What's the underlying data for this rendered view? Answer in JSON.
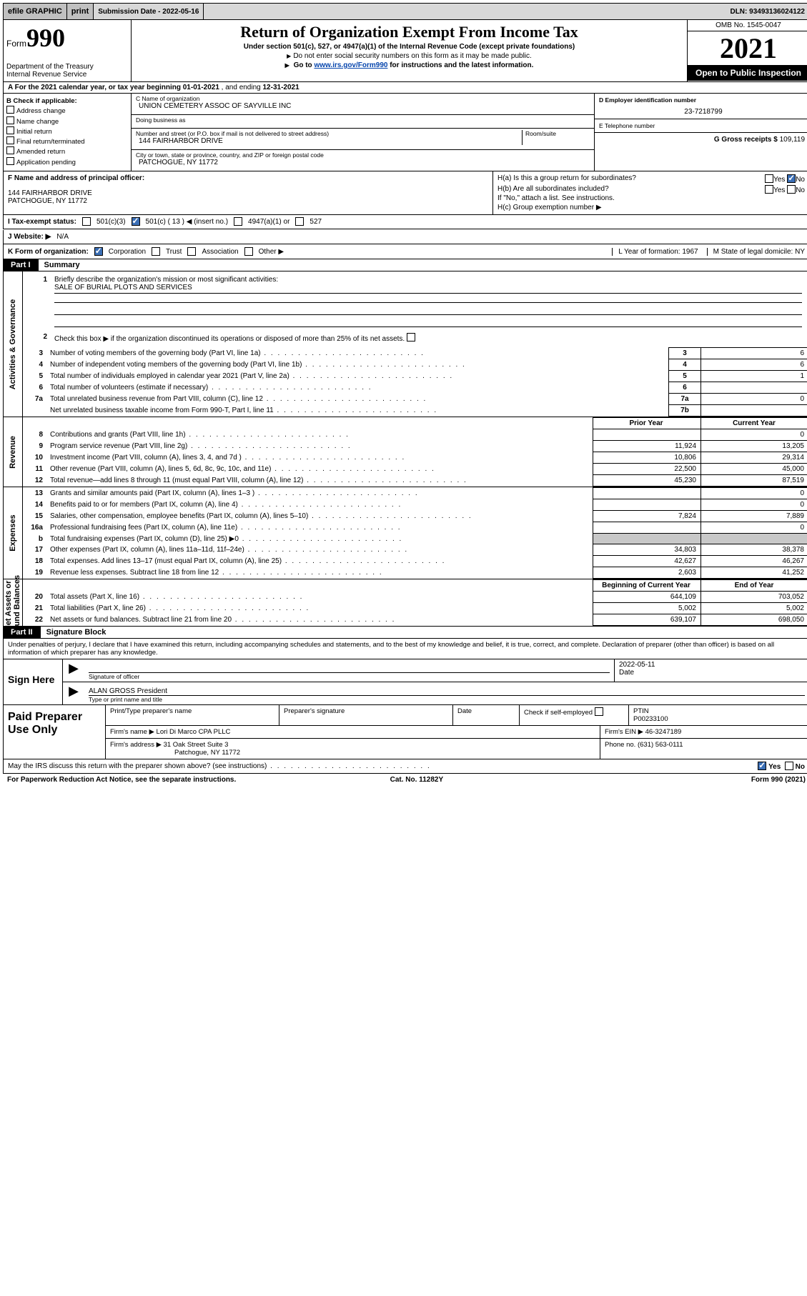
{
  "topbar": {
    "efile": "efile GRAPHIC",
    "print": "print",
    "submission": "Submission Date - 2022-05-16",
    "dln": "DLN: 93493136024122"
  },
  "header": {
    "form_label": "Form",
    "form_number": "990",
    "dept1": "'������",
    "dept_full": "Department of the Treasury",
    "dept2": "Internal Revenue Service",
    "title": "Return of Organization Exempt From Income Tax",
    "sub1": "Under section 501(c), 527, or 4947(a)(1) of the Internal Revenue Code (except private foundations)",
    "sub2": "Do not enter social security numbers on this form as it may be made public.",
    "sub3_pre": "Go to ",
    "sub3_link": "www.irs.gov/Form990",
    "sub3_post": " for instructions and the latest information.",
    "omb": "OMB No. 1545-0047",
    "year": "2021",
    "open": "Open to Public Inspection",
    "colors": {
      "header_bg": "#d8d8d8",
      "link": "#0645ad",
      "open_bg": "#000000",
      "open_fg": "#ffffff",
      "checked_bg": "#3b6fb6"
    }
  },
  "rowA": {
    "text_pre": "A For the 2021 calendar year, or tax year beginning ",
    "begin": "01-01-2021",
    "mid": " , and ending ",
    "end": "12-31-2021"
  },
  "colB": {
    "hdr": "B Check if applicable:",
    "items": [
      "Address change",
      "Name change",
      "Initial return",
      "Final return/terminated",
      "Amended return",
      "Application pending"
    ]
  },
  "colC": {
    "name_lbl": "C Name of organization",
    "name": "UNION CEMETERY ASSOC OF SAYVILLE INC",
    "dba_lbl": "Doing business as",
    "dba": "",
    "addr_lbl": "Number and street (or P.O. box if mail is not delivered to street address)",
    "room_lbl": "Room/suite",
    "addr": "144 FAIRHARBOR DRIVE",
    "city_lbl": "City or town, state or province, country, and ZIP or foreign postal code",
    "city": "PATCHOGUE, NY  11772"
  },
  "colDE": {
    "d_lbl": "D Employer identification number",
    "d_val": "23-7218799",
    "e_lbl": "E Telephone number",
    "e_val": "",
    "g_lbl": "G Gross receipts $",
    "g_val": "109,119"
  },
  "rowF": {
    "f_lbl": "F Name and address of principal officer:",
    "f_addr1": "144 FAIRHARBOR DRIVE",
    "f_addr2": "PATCHOGUE, NY  11772",
    "ha": "H(a)  Is this a group return for subordinates?",
    "ha_yes": "Yes",
    "ha_no": "No",
    "hb": "H(b)  Are all subordinates included?",
    "hb_note": "If \"No,\" attach a list. See instructions.",
    "hc": "H(c)  Group exemption number ▶"
  },
  "rowI": {
    "lbl": "I   Tax-exempt status:",
    "o1": "501(c)(3)",
    "o2": "501(c) ( 13 ) ◀ (insert no.)",
    "o3": "4947(a)(1) or",
    "o4": "527"
  },
  "rowJ": {
    "lbl": "J   Website: ▶",
    "val": "N/A"
  },
  "rowK": {
    "lbl": "K Form of organization:",
    "o1": "Corporation",
    "o2": "Trust",
    "o3": "Association",
    "o4": "Other ▶",
    "l": "L Year of formation: 1967",
    "m": "M State of legal domicile: NY"
  },
  "partI": {
    "tab": "Part I",
    "title": "Summary",
    "q1": "Briefly describe the organization's mission or most significant activities:",
    "q1v": "SALE OF BURIAL PLOTS AND SERVICES",
    "q2": "Check this box ▶        if the organization discontinued its operations or disposed of more than 25% of its net assets.",
    "rows": [
      {
        "n": "3",
        "t": "Number of voting members of the governing body (Part VI, line 1a)",
        "b": "3",
        "v": "6"
      },
      {
        "n": "4",
        "t": "Number of independent voting members of the governing body (Part VI, line 1b)",
        "b": "4",
        "v": "6"
      },
      {
        "n": "5",
        "t": "Total number of individuals employed in calendar year 2021 (Part V, line 2a)",
        "b": "5",
        "v": "1"
      },
      {
        "n": "6",
        "t": "Total number of volunteers (estimate if necessary)",
        "b": "6",
        "v": ""
      },
      {
        "n": "7a",
        "t": "Total unrelated business revenue from Part VIII, column (C), line 12",
        "b": "7a",
        "v": "0"
      },
      {
        "n": "",
        "t": "Net unrelated business taxable income from Form 990-T, Part I, line 11",
        "b": "7b",
        "v": ""
      }
    ],
    "col_prior": "Prior Year",
    "col_curr": "Current Year"
  },
  "revenue": [
    {
      "n": "8",
      "t": "Contributions and grants (Part VIII, line 1h)",
      "p": "",
      "c": "0"
    },
    {
      "n": "9",
      "t": "Program service revenue (Part VIII, line 2g)",
      "p": "11,924",
      "c": "13,205"
    },
    {
      "n": "10",
      "t": "Investment income (Part VIII, column (A), lines 3, 4, and 7d )",
      "p": "10,806",
      "c": "29,314"
    },
    {
      "n": "11",
      "t": "Other revenue (Part VIII, column (A), lines 5, 6d, 8c, 9c, 10c, and 11e)",
      "p": "22,500",
      "c": "45,000"
    },
    {
      "n": "12",
      "t": "Total revenue—add lines 8 through 11 (must equal Part VIII, column (A), line 12)",
      "p": "45,230",
      "c": "87,519"
    }
  ],
  "expenses": [
    {
      "n": "13",
      "t": "Grants and similar amounts paid (Part IX, column (A), lines 1–3 )",
      "p": "",
      "c": "0"
    },
    {
      "n": "14",
      "t": "Benefits paid to or for members (Part IX, column (A), line 4)",
      "p": "",
      "c": "0"
    },
    {
      "n": "15",
      "t": "Salaries, other compensation, employee benefits (Part IX, column (A), lines 5–10)",
      "p": "7,824",
      "c": "7,889"
    },
    {
      "n": "16a",
      "t": "Professional fundraising fees (Part IX, column (A), line 11e)",
      "p": "",
      "c": "0"
    },
    {
      "n": "b",
      "t": "Total fundraising expenses (Part IX, column (D), line 25) ▶0",
      "p": "GRAY",
      "c": "GRAY"
    },
    {
      "n": "17",
      "t": "Other expenses (Part IX, column (A), lines 11a–11d, 11f–24e)",
      "p": "34,803",
      "c": "38,378"
    },
    {
      "n": "18",
      "t": "Total expenses. Add lines 13–17 (must equal Part IX, column (A), line 25)",
      "p": "42,627",
      "c": "46,267"
    },
    {
      "n": "19",
      "t": "Revenue less expenses. Subtract line 18 from line 12",
      "p": "2,603",
      "c": "41,252"
    }
  ],
  "netassets": {
    "hdr_b": "Beginning of Current Year",
    "hdr_e": "End of Year",
    "rows": [
      {
        "n": "20",
        "t": "Total assets (Part X, line 16)",
        "p": "644,109",
        "c": "703,052"
      },
      {
        "n": "21",
        "t": "Total liabilities (Part X, line 26)",
        "p": "5,002",
        "c": "5,002"
      },
      {
        "n": "22",
        "t": "Net assets or fund balances. Subtract line 21 from line 20",
        "p": "639,107",
        "c": "698,050"
      }
    ]
  },
  "partII": {
    "tab": "Part II",
    "title": "Signature Block"
  },
  "penalties": "Under penalties of perjury, I declare that I have examined this return, including accompanying schedules and statements, and to the best of my knowledge and belief, it is true, correct, and complete. Declaration of preparer (other than officer) is based on all information of which preparer has any knowledge.",
  "sign": {
    "left": "Sign Here",
    "date": "2022-05-11",
    "sig_cap": "Signature of officer",
    "date_cap": "Date",
    "name": "ALAN GROSS President",
    "name_cap": "Type or print name and title"
  },
  "paid": {
    "left": "Paid Preparer Use Only",
    "h1": "Print/Type preparer's name",
    "h2": "Preparer's signature",
    "h3": "Date",
    "chk": "Check        if self-employed",
    "ptin_lbl": "PTIN",
    "ptin": "P00233100",
    "firm_lbl": "Firm's name   ▶",
    "firm": "Lori Di Marco CPA PLLC",
    "ein_lbl": "Firm's EIN ▶",
    "ein": "46-3247189",
    "addr_lbl": "Firm's address ▶",
    "addr1": "31 Oak Street Suite 3",
    "addr2": "Patchogue, NY  11772",
    "phone_lbl": "Phone no.",
    "phone": "(631) 563-0111"
  },
  "discuss": {
    "t": "May the IRS discuss this return with the preparer shown above? (see instructions)",
    "yes": "Yes",
    "no": "No"
  },
  "footer": {
    "l": "For Paperwork Reduction Act Notice, see the separate instructions.",
    "m": "Cat. No. 11282Y",
    "r": "Form 990 (2021)"
  }
}
